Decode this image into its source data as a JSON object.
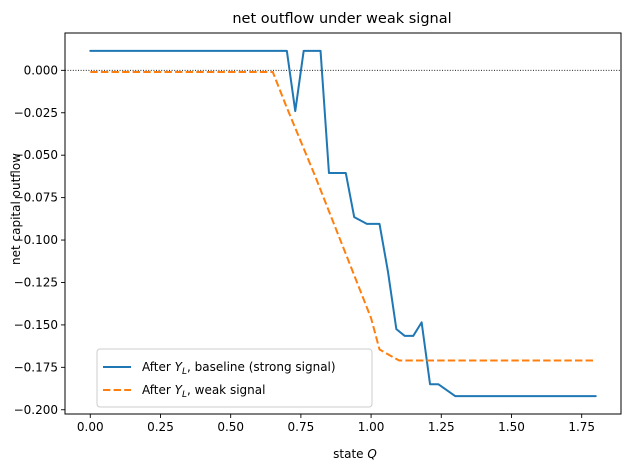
{
  "chart_data": {
    "type": "line",
    "title": "net outflow under weak signal",
    "xlabel": "state Q",
    "ylabel": "net capital outflow",
    "xlim": [
      -0.09,
      1.89
    ],
    "ylim": [
      -0.2025,
      0.022
    ],
    "xticks": [
      0.0,
      0.25,
      0.5,
      0.75,
      1.0,
      1.25,
      1.5,
      1.75
    ],
    "xtick_labels": [
      "0.00",
      "0.25",
      "0.50",
      "0.75",
      "1.00",
      "1.25",
      "1.50",
      "1.75"
    ],
    "yticks": [
      0.0,
      -0.025,
      -0.05,
      -0.075,
      -0.1,
      -0.125,
      -0.15,
      -0.175,
      -0.2
    ],
    "ytick_labels": [
      "0.000",
      "−0.025",
      "−0.050",
      "−0.075",
      "−0.100",
      "−0.125",
      "−0.150",
      "−0.175",
      "−0.200"
    ],
    "reference_line": {
      "y": 0.0,
      "style": "dotted",
      "color": "#000000"
    },
    "legend_position": "lower-left",
    "series": [
      {
        "name": "After Y_L, baseline (strong signal)",
        "legend_label": {
          "pre": "After ",
          "sym": "Y",
          "sub": "L",
          "post": ", baseline (strong signal)"
        },
        "color": "#1f77b4",
        "style": "solid",
        "x": [
          0.0,
          0.7,
          0.73,
          0.76,
          0.82,
          0.85,
          0.91,
          0.94,
          0.985,
          1.03,
          1.06,
          1.09,
          1.12,
          1.15,
          1.18,
          1.21,
          1.24,
          1.3,
          1.8
        ],
        "y": [
          0.0115,
          0.0115,
          -0.024,
          0.0115,
          0.0115,
          -0.0605,
          -0.0605,
          -0.0865,
          -0.0905,
          -0.0905,
          -0.1185,
          -0.1525,
          -0.1565,
          -0.1565,
          -0.1485,
          -0.185,
          -0.185,
          -0.192,
          -0.192
        ]
      },
      {
        "name": "After Y_L, weak signal",
        "legend_label": {
          "pre": "After ",
          "sym": "Y",
          "sub": "L",
          "post": ", weak signal"
        },
        "color": "#ff7f0e",
        "style": "dashed",
        "x": [
          0.0,
          0.65,
          0.7,
          0.8,
          0.9,
          1.0,
          1.03,
          1.1,
          1.8
        ],
        "y": [
          -0.001,
          -0.001,
          -0.022,
          -0.062,
          -0.104,
          -0.146,
          -0.1645,
          -0.171,
          -0.171
        ]
      }
    ]
  }
}
